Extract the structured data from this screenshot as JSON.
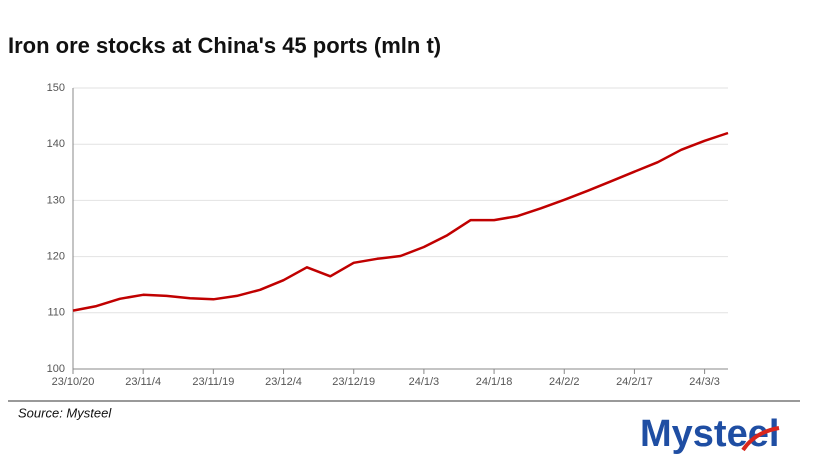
{
  "chart_data": {
    "type": "line",
    "title": "Iron ore stocks at China's 45 ports (mln t)",
    "categories": [
      "23/10/20",
      null,
      null,
      "23/11/4",
      null,
      null,
      "23/11/19",
      null,
      null,
      "23/12/4",
      null,
      null,
      "23/12/19",
      null,
      null,
      "24/1/3",
      null,
      null,
      "24/1/18",
      null,
      null,
      "24/2/2",
      null,
      null,
      "24/2/17",
      null,
      null,
      "24/3/3",
      null
    ],
    "series": [
      {
        "name": "Iron ore stocks",
        "color": "#c00000",
        "values": [
          110.4,
          111.2,
          112.5,
          113.2,
          113.0,
          112.6,
          112.4,
          113.0,
          114.1,
          115.8,
          118.1,
          116.5,
          118.9,
          119.6,
          120.1,
          121.7,
          123.8,
          126.5,
          126.5,
          127.2,
          128.6,
          130.1,
          131.7,
          133.4,
          135.1,
          136.8,
          139.0,
          140.6,
          142.0
        ]
      }
    ],
    "ylim": [
      100,
      150
    ],
    "yticks": [
      100,
      110,
      120,
      130,
      140,
      150
    ],
    "grid": true,
    "source": "Source: Mysteel",
    "logo": "Mysteel"
  }
}
